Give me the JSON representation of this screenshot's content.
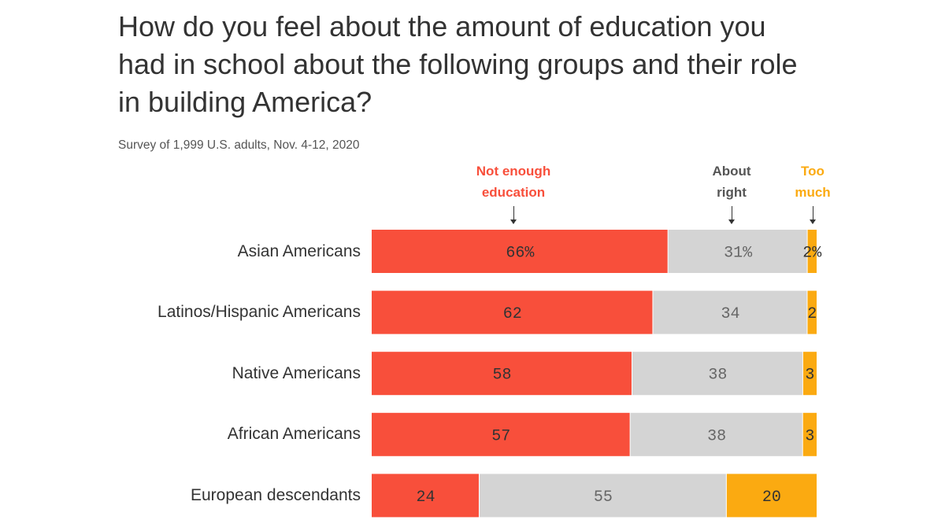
{
  "colors": {
    "not_enough": "#f84f3b",
    "about_right": "#d4d4d4",
    "too_much": "#fbaa11",
    "label_dark": "#333333",
    "label_grey": "#666666"
  },
  "chart_data": {
    "type": "bar",
    "orientation": "horizontal",
    "stacked": true,
    "title": "How do you feel about the amount of education you had in school about the following groups and their role in building America?",
    "subtitle": "Survey of 1,999 U.S. adults, Nov. 4-12, 2020",
    "categories": [
      "Asian Americans",
      "Latinos/Hispanic Americans",
      "Native Americans",
      "African Americans",
      "European descendants"
    ],
    "series": [
      {
        "name": "Not enough\neducation",
        "values": [
          66,
          62,
          58,
          57,
          24
        ],
        "labels": [
          "66%",
          "62",
          "58",
          "57",
          "24"
        ]
      },
      {
        "name": "About\nright",
        "values": [
          31,
          34,
          38,
          38,
          55
        ],
        "labels": [
          "31%",
          "34",
          "38",
          "38",
          "55"
        ]
      },
      {
        "name": "Too\nmuch",
        "values": [
          2,
          2,
          3,
          3,
          20
        ],
        "labels": [
          "2%",
          "2",
          "3",
          "3",
          "20"
        ]
      }
    ],
    "xlim": [
      0,
      100
    ],
    "grid": false,
    "legend": "top, above each segment with arrows"
  }
}
